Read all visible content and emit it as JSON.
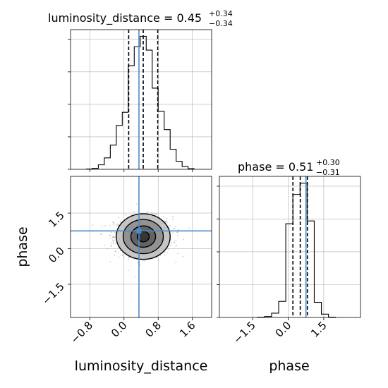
{
  "chart_data": {
    "type": "corner",
    "parameters": [
      "luminosity_distance",
      "phase"
    ],
    "truth": {
      "luminosity_distance": 0.35,
      "phase": 0.75
    },
    "panels": [
      {
        "name": "luminosity_distance-histogram",
        "type": "histogram",
        "title": {
          "main": "luminosity_distance = 0.45",
          "sup": "+0.34",
          "sub": "−0.34"
        },
        "xlim": [
          -1.25,
          2.05
        ],
        "bin_edges": [
          -0.88,
          -0.74,
          -0.6,
          -0.46,
          -0.32,
          -0.18,
          -0.04,
          0.1,
          0.24,
          0.38,
          0.52,
          0.66,
          0.8,
          0.94,
          1.08,
          1.22,
          1.36,
          1.5,
          1.64
        ],
        "counts": [
          1,
          3,
          13,
          33,
          70,
          127,
          165,
          300,
          355,
          385,
          345,
          235,
          168,
          115,
          58,
          23,
          8,
          2
        ],
        "quantiles": [
          0.11,
          0.45,
          0.79
        ],
        "grid": true
      },
      {
        "name": "phase-histogram",
        "type": "histogram",
        "title": {
          "main": "phase = 0.51",
          "sup": "+0.30",
          "sub": "−0.31"
        },
        "xlim": [
          -2.9,
          3.05
        ],
        "bin_edges": [
          -1.3,
          -1.0,
          -0.7,
          -0.4,
          -0.1,
          0.2,
          0.5,
          0.8,
          1.1,
          1.4,
          1.7,
          2.0
        ],
        "counts": [
          2,
          10,
          45,
          170,
          990,
          1300,
          1420,
          1020,
          160,
          35,
          3
        ],
        "quantiles": [
          0.2,
          0.51,
          0.81
        ],
        "grid": true
      },
      {
        "name": "joint-luminosity_distance-phase",
        "type": "2d-density",
        "xlim": [
          -1.25,
          2.05
        ],
        "ylim": [
          -2.9,
          3.05
        ],
        "center": [
          0.45,
          0.51
        ],
        "contours": [
          {
            "rx": 0.14,
            "ry": 0.22
          },
          {
            "rx": 0.29,
            "ry": 0.45
          },
          {
            "rx": 0.47,
            "ry": 0.72
          },
          {
            "rx": 0.63,
            "ry": 0.96
          }
        ],
        "grid": true
      }
    ],
    "ticks": {
      "luminosity_distance": [
        "−0.8",
        "0.0",
        "0.8",
        "1.6"
      ],
      "phase": [
        "−1.5",
        "0.0",
        "1.5"
      ]
    },
    "tick_values": {
      "luminosity_distance": [
        -0.8,
        0.0,
        0.8,
        1.6
      ],
      "phase": [
        -1.5,
        0.0,
        1.5
      ]
    },
    "xlabels": {
      "left": "luminosity_distance",
      "right": "phase"
    },
    "ylabel": "phase",
    "colors": {
      "truth": "#4C8BC9",
      "hist": "#000000",
      "grid": "#b0b0b0",
      "points": "#9e9e9e"
    }
  }
}
